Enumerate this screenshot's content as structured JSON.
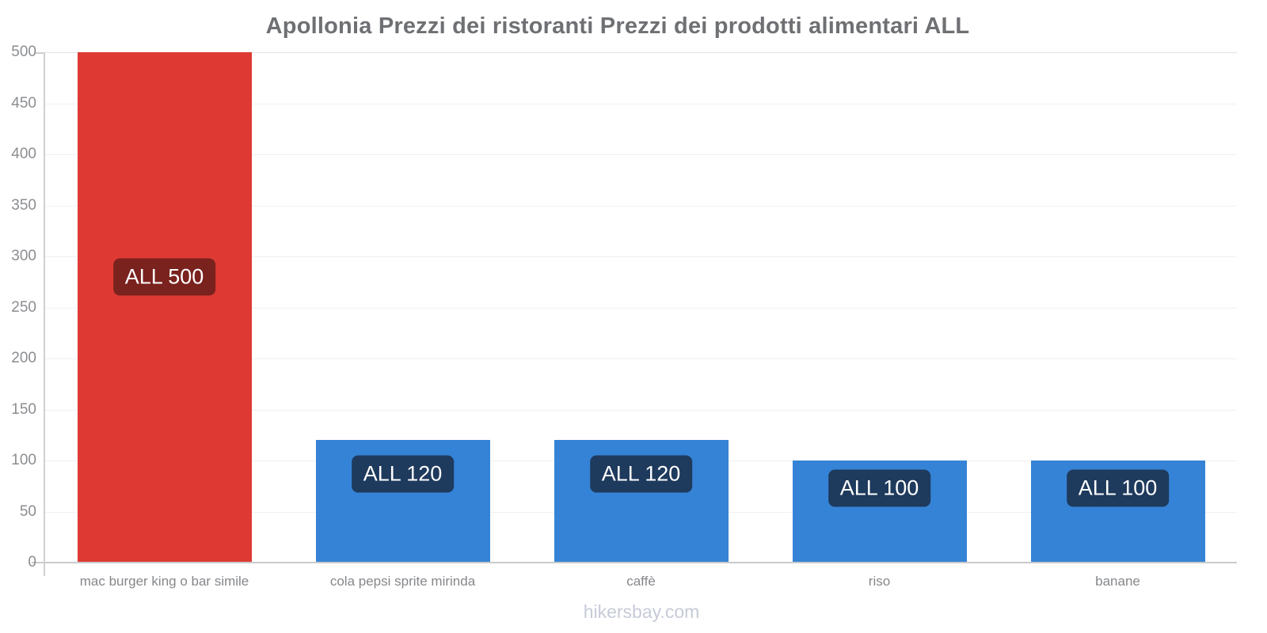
{
  "page": {
    "watermark": "hikersbay.com"
  },
  "colors": {
    "bar_red": "#de3a33",
    "bar_blue": "#3583d6",
    "badge_dark_red": "#7a221e",
    "badge_dark_blue": "#1e3a5d",
    "title_text": "#6e7073",
    "axis_text": "#8b8d90",
    "axis_line": "#cfd0d2",
    "gridline": "#f0f0f0",
    "watermark_text": "#c6cbd7"
  },
  "chart_data": {
    "type": "bar",
    "title": "Apollonia Prezzi dei ristoranti Prezzi dei prodotti alimentari ALL",
    "categories": [
      "mac burger king o bar simile",
      "cola pepsi sprite mirinda",
      "caffè",
      "riso",
      "banane"
    ],
    "values": [
      500,
      120,
      120,
      100,
      100
    ],
    "bar_labels": [
      "ALL 500",
      "ALL 120",
      "ALL 120",
      "ALL 100",
      "ALL 100"
    ],
    "currency": "ALL",
    "xlabel": "",
    "ylabel": "",
    "ylim": [
      0,
      500
    ],
    "ytick_step": 50,
    "yticks": [
      0,
      50,
      100,
      150,
      200,
      250,
      300,
      350,
      400,
      450,
      500
    ],
    "grid": true,
    "legend": false,
    "bar_colors": [
      "#de3a33",
      "#3583d6",
      "#3583d6",
      "#3583d6",
      "#3583d6"
    ],
    "bar_label_bg": [
      "#7a221e",
      "#1e3a5d",
      "#1e3a5d",
      "#1e3a5d",
      "#1e3a5d"
    ],
    "footer": "hikersbay.com"
  }
}
